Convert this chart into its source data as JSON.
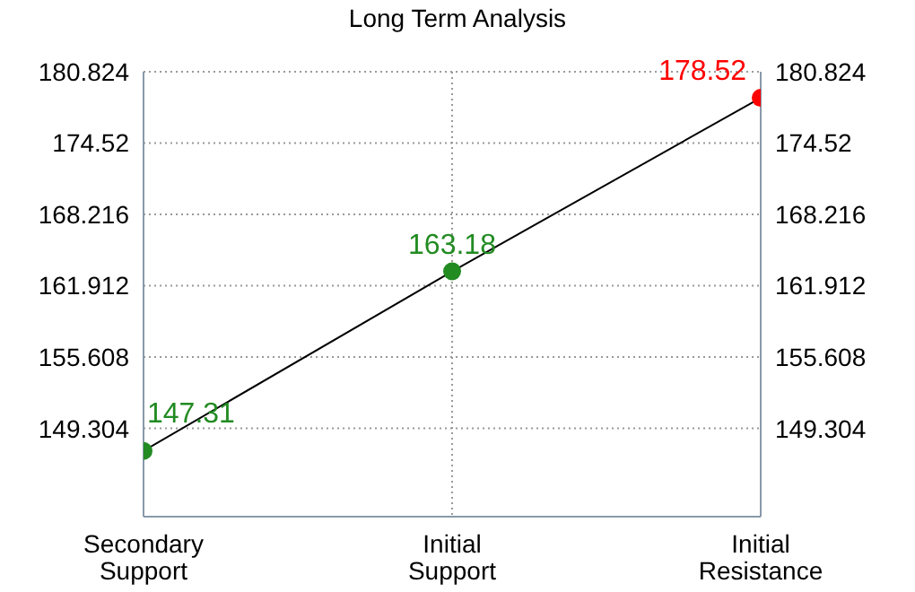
{
  "chart_data": {
    "type": "line",
    "title": "Long Term Analysis",
    "categories": [
      "Secondary Support",
      "Initial Support",
      "Initial Resistance"
    ],
    "series": [
      {
        "color": "#000000",
        "colors": [
          "#228b22",
          "#228b22",
          "#ff0000"
        ],
        "values": [
          147.31,
          163.18,
          178.52
        ]
      }
    ],
    "ylim": [
      141.5,
      180.824
    ],
    "yticks": [
      149.304,
      155.608,
      161.912,
      168.216,
      174.52,
      180.824
    ],
    "y2lim": [
      141.5,
      180.824
    ],
    "y2ticks": [
      149.304,
      155.608,
      161.912,
      168.216,
      174.52,
      180.824
    ],
    "grid": true,
    "marker": "circle",
    "data_labels": true
  }
}
